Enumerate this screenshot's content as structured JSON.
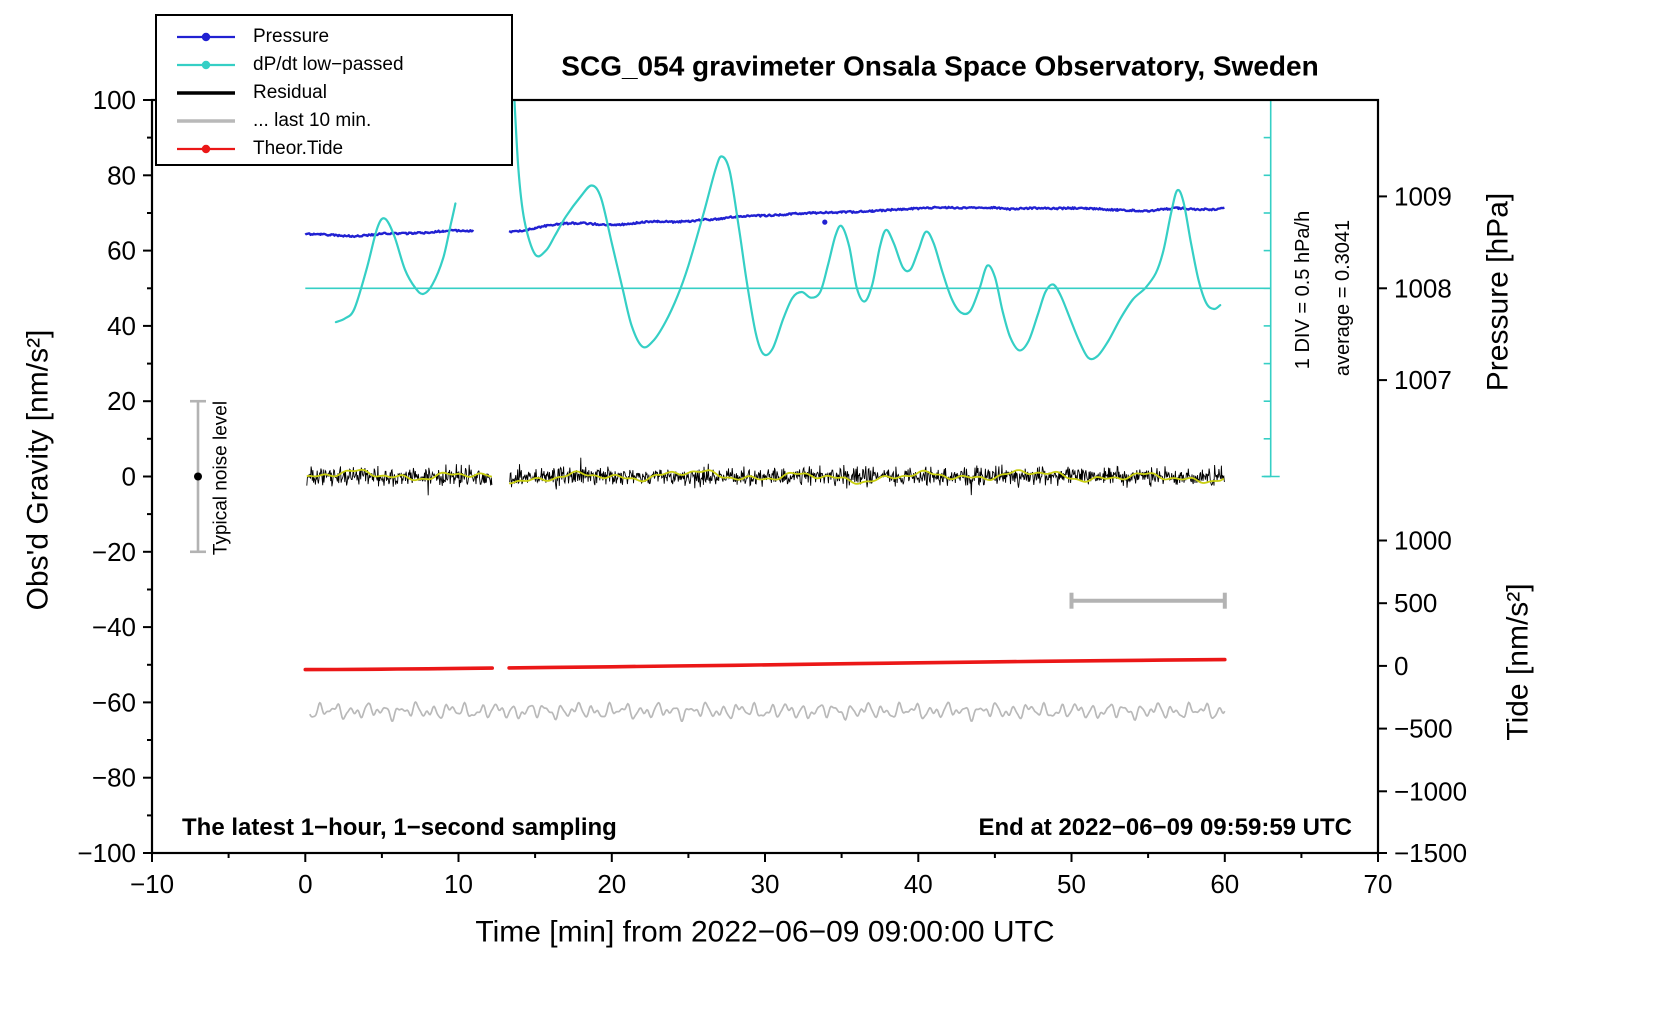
{
  "annotations": {
    "sampling_note": "The latest 1−hour, 1−second sampling",
    "end_note": "End at 2022−06−09 09:59:59 UTC",
    "div_note": "1 DIV = 0.5 hPa/h",
    "average_note": "average = 0.3041",
    "noise_label": "Typical noise level"
  },
  "colors": {
    "blue": "#2121d2",
    "cyan": "#35cfc5",
    "red": "#eb1717",
    "gray": "#b9b9b9",
    "bar_gray": "#b3b3b3",
    "yellow": "#c9cf10",
    "black": "#000000"
  },
  "legend": [
    {
      "label": "Pressure",
      "color": "#2121d2",
      "marker": "line-dot"
    },
    {
      "label": "dP/dt low−passed",
      "color": "#35cfc5",
      "marker": "line-dot"
    },
    {
      "label": "Residual",
      "color": "#000000",
      "marker": "line"
    },
    {
      "label": "... last 10 min.",
      "color": "#b9b9b9",
      "marker": "line"
    },
    {
      "label": "Theor.Tide",
      "color": "#eb1717",
      "marker": "line-dot"
    }
  ],
  "chart_data": {
    "type": "line",
    "title": "SCG_054 gravimeter Onsala Space Observatory, Sweden",
    "xlabel": "Time [min] from 2022−06−09 09:00:00 UTC",
    "x_range": [
      -10,
      70
    ],
    "gap_minutes": [
      12.2,
      13.3
    ],
    "axes": {
      "x": {
        "ticks": [
          -10,
          0,
          10,
          20,
          30,
          40,
          50,
          60,
          70
        ]
      },
      "gravity": {
        "label": "Obs'd Gravity [nm/s²]",
        "range": [
          -100,
          100
        ],
        "ticks": [
          -100,
          -80,
          -60,
          -40,
          -20,
          0,
          20,
          40,
          60,
          80,
          100
        ]
      },
      "pressure": {
        "label": "Pressure [hPa]",
        "ticks": [
          1007,
          1008,
          1009
        ],
        "map": {
          "g_ref": 50,
          "hPa_ref": 1008,
          "g_per_hPa": 24.4
        }
      },
      "tide": {
        "label": "Tide [nm/s²]",
        "ticks": [
          -1500,
          -1000,
          -500,
          0,
          500,
          1000
        ],
        "map": {
          "g_ref": -50.3,
          "tide_per_g": 30.03
        }
      }
    },
    "series": {
      "pressure": {
        "name": "Pressure",
        "axis": "pressure_hPa",
        "jitter_seed": 3,
        "points": [
          [
            0,
            1008.59
          ],
          [
            1,
            1008.586
          ],
          [
            2,
            1008.578
          ],
          [
            3,
            1008.566
          ],
          [
            4,
            1008.574
          ],
          [
            5,
            1008.594
          ],
          [
            6,
            1008.598
          ],
          [
            7,
            1008.598
          ],
          [
            8,
            1008.607
          ],
          [
            9,
            1008.623
          ],
          [
            10,
            1008.627
          ],
          [
            11,
            1008.623
          ],
          [
            12.2,
            1008.627
          ],
          [
            13.3,
            1008.615
          ],
          [
            14,
            1008.623
          ],
          [
            15,
            1008.656
          ],
          [
            16,
            1008.689
          ],
          [
            17,
            1008.705
          ],
          [
            18,
            1008.709
          ],
          [
            19,
            1008.697
          ],
          [
            20,
            1008.689
          ],
          [
            21,
            1008.697
          ],
          [
            22,
            1008.721
          ],
          [
            23,
            1008.73
          ],
          [
            24,
            1008.721
          ],
          [
            25,
            1008.73
          ],
          [
            26,
            1008.746
          ],
          [
            27,
            1008.754
          ],
          [
            28,
            1008.779
          ],
          [
            29,
            1008.787
          ],
          [
            30,
            1008.791
          ],
          [
            31,
            1008.799
          ],
          [
            32,
            1008.811
          ],
          [
            33,
            1008.82
          ],
          [
            34,
            1008.824
          ],
          [
            35,
            1008.828
          ],
          [
            36,
            1008.832
          ],
          [
            37,
            1008.84
          ],
          [
            38,
            1008.852
          ],
          [
            39,
            1008.861
          ],
          [
            40,
            1008.869
          ],
          [
            41,
            1008.877
          ],
          [
            42,
            1008.881
          ],
          [
            43,
            1008.873
          ],
          [
            44,
            1008.881
          ],
          [
            45,
            1008.877
          ],
          [
            46,
            1008.861
          ],
          [
            47,
            1008.869
          ],
          [
            48,
            1008.873
          ],
          [
            49,
            1008.869
          ],
          [
            50,
            1008.873
          ],
          [
            51,
            1008.869
          ],
          [
            52,
            1008.861
          ],
          [
            53,
            1008.852
          ],
          [
            54,
            1008.848
          ],
          [
            55,
            1008.84
          ],
          [
            56,
            1008.861
          ],
          [
            57,
            1008.873
          ],
          [
            58,
            1008.861
          ],
          [
            59,
            1008.857
          ],
          [
            60,
            1008.869
          ]
        ]
      },
      "dpdt": {
        "name": "dP/dt low−passed",
        "axis": "gravity_display_units",
        "zero_at_g": 50,
        "div_hPa_per_h": 0.5,
        "segments": [
          [
            [
              2,
              41
            ],
            [
              2.6,
              42
            ],
            [
              3.2,
              44.5
            ],
            [
              4,
              55
            ],
            [
              4.7,
              66
            ],
            [
              5.2,
              68.5
            ],
            [
              5.8,
              64
            ],
            [
              6.5,
              55
            ],
            [
              7.2,
              50
            ],
            [
              7.7,
              48.5
            ],
            [
              8.3,
              51
            ],
            [
              9,
              58
            ],
            [
              9.5,
              67
            ],
            [
              9.8,
              72.5
            ]
          ],
          [
            [
              13.55,
              108
            ],
            [
              13.9,
              82
            ],
            [
              14.3,
              68
            ],
            [
              15,
              59
            ],
            [
              15.7,
              60
            ],
            [
              16.3,
              64
            ],
            [
              17,
              69
            ],
            [
              18,
              74.5
            ],
            [
              18.7,
              77.3
            ],
            [
              19.3,
              74
            ],
            [
              20,
              62
            ],
            [
              20.7,
              50
            ],
            [
              21.3,
              40
            ],
            [
              22,
              34.5
            ],
            [
              22.7,
              36
            ],
            [
              23.5,
              41
            ],
            [
              24.3,
              48
            ],
            [
              25,
              56
            ],
            [
              26,
              70
            ],
            [
              26.8,
              82
            ],
            [
              27.2,
              85
            ],
            [
              27.7,
              81
            ],
            [
              28.3,
              66
            ],
            [
              28.8,
              52
            ],
            [
              29.4,
              38
            ],
            [
              29.9,
              32.5
            ],
            [
              30.5,
              34
            ],
            [
              31.2,
              42
            ],
            [
              31.8,
              47.5
            ],
            [
              32.4,
              49
            ],
            [
              33,
              47.5
            ],
            [
              33.6,
              49
            ],
            [
              34.1,
              56
            ],
            [
              34.6,
              64
            ],
            [
              35,
              66.5
            ],
            [
              35.5,
              61
            ],
            [
              36,
              50
            ],
            [
              36.5,
              46.5
            ],
            [
              37,
              51
            ],
            [
              37.5,
              61
            ],
            [
              37.9,
              65.5
            ],
            [
              38.4,
              62
            ],
            [
              39,
              55.5
            ],
            [
              39.5,
              55
            ],
            [
              40,
              60
            ],
            [
              40.5,
              65
            ],
            [
              41,
              62
            ],
            [
              41.6,
              54
            ],
            [
              42.2,
              47
            ],
            [
              42.8,
              43.5
            ],
            [
              43.4,
              44
            ],
            [
              44,
              50
            ],
            [
              44.5,
              56
            ],
            [
              45,
              53
            ],
            [
              45.5,
              44
            ],
            [
              46,
              37
            ],
            [
              46.6,
              33.5
            ],
            [
              47.2,
              36
            ],
            [
              47.8,
              43
            ],
            [
              48.3,
              49
            ],
            [
              48.8,
              51
            ],
            [
              49.3,
              48
            ],
            [
              49.9,
              42
            ],
            [
              50.5,
              36
            ],
            [
              51.1,
              31.5
            ],
            [
              51.7,
              32
            ],
            [
              52.4,
              36
            ],
            [
              53.2,
              42
            ],
            [
              54,
              47
            ],
            [
              54.8,
              50
            ],
            [
              55.5,
              54
            ],
            [
              56,
              60
            ],
            [
              56.5,
              70
            ],
            [
              56.9,
              76
            ],
            [
              57.3,
              73
            ],
            [
              57.8,
              62
            ],
            [
              58.3,
              52
            ],
            [
              58.8,
              46
            ],
            [
              59.3,
              44.5
            ],
            [
              59.7,
              45.5
            ]
          ]
        ]
      },
      "residual": {
        "name": "Residual",
        "axis": "gravity",
        "mean": 0,
        "noise": {
          "x_start": 0.1,
          "x_end": 60,
          "step": 0.04,
          "base_amp": 2.4,
          "spike_prob": 0.012,
          "spike_min": 2,
          "spike_max": 4.5,
          "seed": 11
        }
      },
      "residual_lowpass": {
        "name": "Residual low−passed",
        "axis": "gravity",
        "mean": 0,
        "components": [
          [
            0.85,
            0.85
          ],
          [
            0.5,
            2.2
          ],
          [
            0.3,
            5.0
          ],
          [
            0.45,
            0.3
          ]
        ],
        "seed": 5
      },
      "last10": {
        "name": "... last 10 min.",
        "axis": "gravity",
        "baseline": -62.3,
        "components": [
          [
            1.1,
            5.98
          ],
          [
            0.75,
            9.97
          ],
          [
            0.5,
            2.33
          ],
          [
            0.4,
            15.3
          ]
        ],
        "seed": 9
      },
      "tide": {
        "name": "Theor.Tide",
        "axis": "tide",
        "segments": [
          [
            [
              0,
              -30
            ],
            [
              2,
              -28.5
            ],
            [
              4,
              -27
            ],
            [
              6,
              -25
            ],
            [
              8,
              -23
            ],
            [
              10,
              -20.5
            ],
            [
              12.2,
              -17.5
            ]
          ],
          [
            [
              13.3,
              -16
            ],
            [
              16,
              -12.5
            ],
            [
              20,
              -7
            ],
            [
              24,
              -1
            ],
            [
              28,
              5
            ],
            [
              32,
              11.5
            ],
            [
              36,
              18
            ],
            [
              40,
              24.5
            ],
            [
              44,
              30.5
            ],
            [
              48,
              36.5
            ],
            [
              52,
              41.5
            ],
            [
              56,
              46
            ],
            [
              60,
              50
            ]
          ]
        ]
      }
    },
    "markers": {
      "noise_bar": {
        "x": -7,
        "g_from": -20,
        "g_to": 20,
        "dot_g": 0
      },
      "last10_bar": {
        "x_from": 50,
        "x_to": 60,
        "g": -33
      },
      "dpdt_baseline": {
        "g": 50,
        "x_from": 0,
        "x_to": 63
      },
      "dpdt_axis": {
        "x": 63,
        "g_from": 0,
        "g_to": 100,
        "tick_step": 10
      },
      "pressure_outlier": {
        "x": 33.9,
        "hPa": 1008.72
      }
    }
  }
}
